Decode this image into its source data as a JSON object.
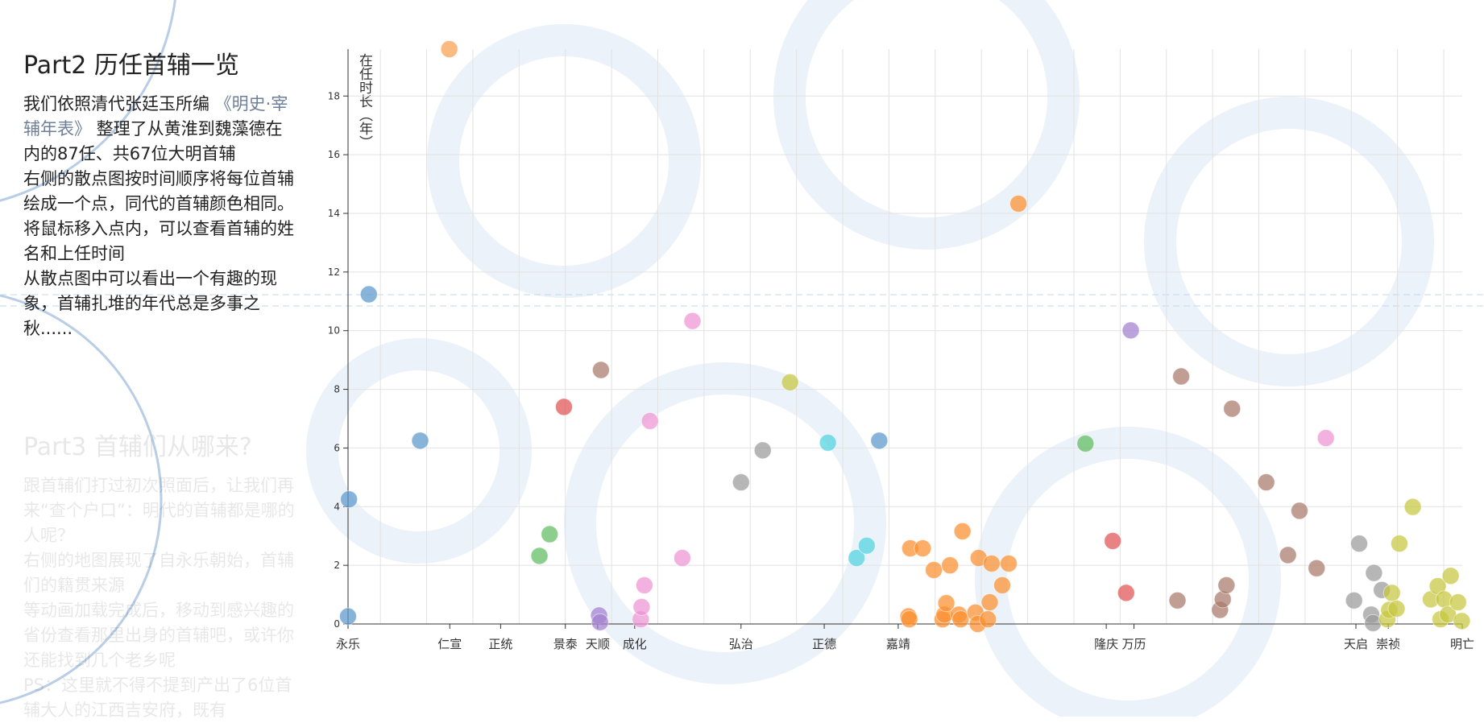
{
  "sidebar": {
    "title": "Part2 历任首辅一览",
    "paragraphs": [
      [
        "我们依照清代张廷玉所编 ",
        "《明史·宰辅年表》",
        " 整理了从黄淮到魏藻德在内的87任、共67位大明首辅"
      ],
      [
        "右侧的散点图按时间顺序将每位首辅绘成一个点，同代的首辅颜色相同。将鼠标移入点内，可以查看首辅的姓名和上任时间"
      ],
      [
        "从散点图中可以看出一个有趣的现象，首辅扎堆的年代总是多事之秋......"
      ]
    ],
    "next_title": "Part3 首辅们从哪来?",
    "next_paragraphs": [
      "跟首辅们打过初次照面后，让我们再来“查个户口”：明代的首辅都是哪的人呢？",
      "右侧的地图展现了自永乐朝始，首辅们的籍贯来源",
      "等动画加载完成后，移动到感兴趣的省份查看那里出身的首辅吧，或许你还能找到几个老乡呢",
      "PS：这里就不得不提到产出了6位首辅大人的江西吉安府，既有"
    ]
  },
  "chart_data": {
    "type": "scatter",
    "y_label": "在任时长（年）",
    "xlim": [
      1403,
      1644
    ],
    "ylim": [
      0,
      19.6
    ],
    "yticks": [
      0,
      2,
      4,
      6,
      8,
      10,
      12,
      14,
      16,
      18
    ],
    "xticks": [
      {
        "value": 1403,
        "label": "永乐"
      },
      {
        "value": 1425,
        "label": "仁宣"
      },
      {
        "value": 1436,
        "label": "正统"
      },
      {
        "value": 1450,
        "label": "景泰"
      },
      {
        "value": 1457,
        "label": "天顺"
      },
      {
        "value": 1465,
        "label": "成化"
      },
      {
        "value": 1488,
        "label": "弘治"
      },
      {
        "value": 1506,
        "label": "正德"
      },
      {
        "value": 1522,
        "label": "嘉靖"
      },
      {
        "value": 1567,
        "label": "隆庆"
      },
      {
        "value": 1573,
        "label": "万历"
      },
      {
        "value": 1621,
        "label": "天启"
      },
      {
        "value": 1628,
        "label": "崇祯"
      },
      {
        "value": 1644,
        "label": "明亡"
      }
    ],
    "xgrid": [
      1410,
      1420,
      1430,
      1440,
      1450,
      1460,
      1470,
      1480,
      1490,
      1500,
      1510,
      1520,
      1530,
      1540,
      1550,
      1560,
      1570,
      1580,
      1590,
      1600,
      1610,
      1620,
      1630,
      1640
    ],
    "grid": true,
    "series": [
      {
        "color": "#5b97cc",
        "x": [
          1403.0,
          1403.2,
          1407.5,
          1418.6
        ],
        "values": [
          0.26,
          4.25,
          11.24,
          6.25
        ]
      },
      {
        "color": "#f9a04f",
        "x": [
          1424.9
        ],
        "values": [
          19.6
        ]
      },
      {
        "color": "#5fbb5f",
        "x": [
          1444.4,
          1446.6
        ],
        "values": [
          2.32,
          3.06
        ]
      },
      {
        "color": "#e05353",
        "x": [
          1449.7
        ],
        "values": [
          7.4
        ]
      },
      {
        "color": "#a8786a",
        "x": [
          1457.7
        ],
        "values": [
          8.66
        ]
      },
      {
        "color": "#a27fcf",
        "x": [
          1457.3,
          1457.5
        ],
        "values": [
          0.29,
          0.06
        ]
      },
      {
        "color": "#ef93d3",
        "x": [
          1466.3,
          1466.5,
          1467.1,
          1468.3,
          1475.3,
          1477.5
        ],
        "values": [
          0.16,
          0.58,
          1.32,
          6.92,
          2.25,
          10.33
        ]
      },
      {
        "color": "#9a9a9a",
        "x": [
          1488.0,
          1492.7
        ],
        "values": [
          4.83,
          5.92
        ]
      },
      {
        "color": "#c6c63f",
        "x": [
          1498.6
        ],
        "values": [
          8.24
        ]
      },
      {
        "color": "#4fd3e0",
        "x": [
          1506.8,
          1513.0,
          1515.2
        ],
        "values": [
          6.18,
          2.25,
          2.67
        ]
      },
      {
        "color": "#5b97cc",
        "x": [
          1517.9
        ],
        "values": [
          6.25
        ]
      },
      {
        "color": "#fb8f2e",
        "x": [
          1524.2,
          1524.4,
          1524.6,
          1527.3,
          1529.7,
          1531.6,
          1532.0,
          1532.4,
          1533.2,
          1535.1,
          1535.5,
          1535.9,
          1538.7,
          1539.2,
          1539.4,
          1541.4,
          1541.8,
          1542.2,
          1544.5,
          1545.9,
          1548.0
        ],
        "values": [
          0.26,
          0.16,
          2.58,
          2.58,
          1.84,
          0.16,
          0.32,
          0.71,
          2.0,
          0.32,
          0.16,
          3.16,
          0.39,
          0.0,
          2.25,
          0.16,
          0.74,
          2.06,
          1.32,
          2.06,
          14.33
        ]
      },
      {
        "color": "#5fbb5f",
        "x": [
          1562.5
        ],
        "values": [
          6.15
        ]
      },
      {
        "color": "#e05353",
        "x": [
          1568.4,
          1571.3
        ],
        "values": [
          2.83,
          1.06
        ]
      },
      {
        "color": "#a27fcf",
        "x": [
          1572.3
        ],
        "values": [
          10.01
        ]
      },
      {
        "color": "#a8786a",
        "x": [
          1582.4,
          1583.2,
          1591.6,
          1592.2,
          1593.0,
          1594.2,
          1601.6,
          1606.3,
          1608.8,
          1612.5
        ],
        "values": [
          0.8,
          8.44,
          0.48,
          0.84,
          1.32,
          7.34,
          4.83,
          2.35,
          3.86,
          1.9
        ]
      },
      {
        "color": "#ef93d3",
        "x": [
          1614.5
        ],
        "values": [
          6.34
        ]
      },
      {
        "color": "#9a9a9a",
        "x": [
          1620.6,
          1621.7,
          1624.3,
          1624.7,
          1624.9,
          1626.6
        ],
        "values": [
          0.8,
          2.74,
          0.32,
          0.03,
          1.74,
          1.16
        ]
      },
      {
        "color": "#c6c63f",
        "x": [
          1627.8,
          1628.2,
          1628.8,
          1629.8,
          1630.4,
          1633.3,
          1637.2,
          1638.7,
          1639.3,
          1640.1,
          1640.9,
          1641.5,
          1643.1,
          1643.9
        ],
        "values": [
          0.16,
          0.48,
          1.06,
          0.52,
          2.74,
          3.99,
          0.84,
          1.29,
          0.16,
          0.84,
          0.32,
          1.64,
          0.74,
          0.1
        ]
      }
    ]
  }
}
